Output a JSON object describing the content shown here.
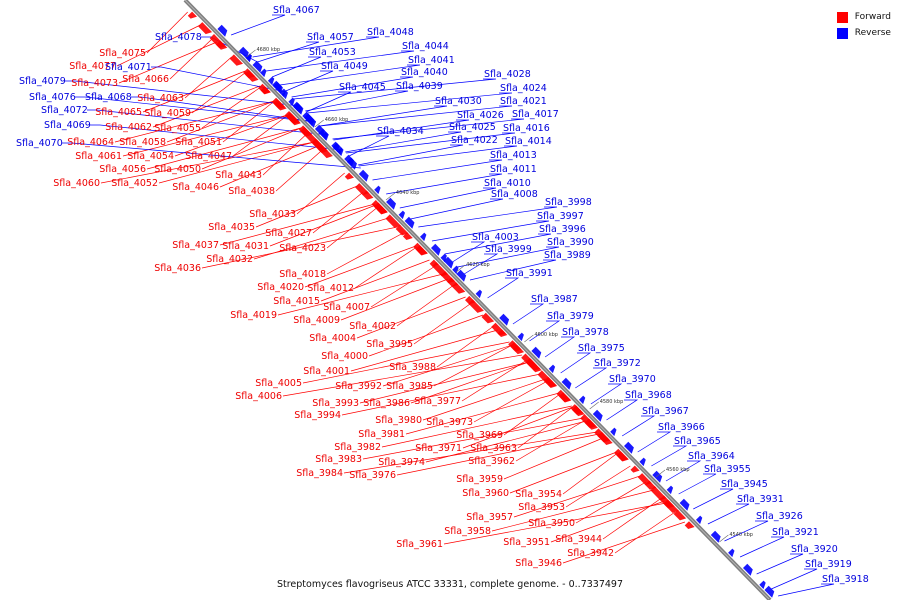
{
  "legend": {
    "forward_label": "Forward",
    "reverse_label": "Reverse",
    "forward_color": "#ff0000",
    "reverse_color": "#0000ff"
  },
  "caption": "Streptomyces flavogriseus ATCC 33331, complete genome. - 0..7337497",
  "scale_ticks": [
    "4680 kbp",
    "4660 kbp",
    "4640 kbp",
    "4620 kbp",
    "4600 kbp",
    "4580 kbp",
    "4560 kbp",
    "4540 kbp"
  ],
  "forward_genes": [
    "Sfla_4075",
    "Sfla_4077",
    "Sfla_4073",
    "Sfla_4066",
    "Sfla_4063",
    "Sfla_4065",
    "Sfla_4059",
    "Sfla_4062",
    "Sfla_4055",
    "Sfla_4064",
    "Sfla_4058",
    "Sfla_4051",
    "Sfla_4061",
    "Sfla_4054",
    "Sfla_4047",
    "Sfla_4056",
    "Sfla_4050",
    "Sfla_4060",
    "Sfla_4052",
    "Sfla_4046",
    "Sfla_4043",
    "Sfla_4038",
    "Sfla_4033",
    "Sfla_4035",
    "Sfla_4027",
    "Sfla_4037",
    "Sfla_4031",
    "Sfla_4023",
    "Sfla_4032",
    "Sfla_4036",
    "Sfla_4018",
    "Sfla_4020",
    "Sfla_4012",
    "Sfla_4015",
    "Sfla_4019",
    "Sfla_4009",
    "Sfla_4007",
    "Sfla_4002",
    "Sfla_4004",
    "Sfla_3995",
    "Sfla_4000",
    "Sfla_4001",
    "Sfla_3988",
    "Sfla_4005",
    "Sfla_3992",
    "Sfla_3985",
    "Sfla_4006",
    "Sfla_3993",
    "Sfla_3986",
    "Sfla_3977",
    "Sfla_3994",
    "Sfla_3980",
    "Sfla_3973",
    "Sfla_3981",
    "Sfla_3969",
    "Sfla_3982",
    "Sfla_3971",
    "Sfla_3963",
    "Sfla_3983",
    "Sfla_3974",
    "Sfla_3962",
    "Sfla_3984",
    "Sfla_3976",
    "Sfla_3959",
    "Sfla_3960",
    "Sfla_3954",
    "Sfla_3953",
    "Sfla_3957",
    "Sfla_3950",
    "Sfla_3958",
    "Sfla_3944",
    "Sfla_3951",
    "Sfla_3961",
    "Sfla_3942",
    "Sfla_3946"
  ],
  "reverse_genes": [
    "Sfla_4078",
    "Sfla_4067",
    "Sfla_4057",
    "Sfla_4048",
    "Sfla_4053",
    "Sfla_4044",
    "Sfla_4041",
    "Sfla_4049",
    "Sfla_4040",
    "Sfla_4071",
    "Sfla_4079",
    "Sfla_4045",
    "Sfla_4039",
    "Sfla_4076",
    "Sfla_4068",
    "Sfla_4072",
    "Sfla_4069",
    "Sfla_4070",
    "Sfla_4028",
    "Sfla_4024",
    "Sfla_4030",
    "Sfla_4021",
    "Sfla_4026",
    "Sfla_4017",
    "Sfla_4025",
    "Sfla_4016",
    "Sfla_4034",
    "Sfla_4022",
    "Sfla_4014",
    "Sfla_4013",
    "Sfla_4011",
    "Sfla_4010",
    "Sfla_4008",
    "Sfla_3998",
    "Sfla_3997",
    "Sfla_3996",
    "Sfla_4003",
    "Sfla_3990",
    "Sfla_3999",
    "Sfla_3989",
    "Sfla_3991",
    "Sfla_3987",
    "Sfla_3979",
    "Sfla_3978",
    "Sfla_3975",
    "Sfla_3972",
    "Sfla_3970",
    "Sfla_3968",
    "Sfla_3967",
    "Sfla_3966",
    "Sfla_3965",
    "Sfla_3964",
    "Sfla_3955",
    "Sfla_3945",
    "Sfla_3931",
    "Sfla_3926",
    "Sfla_3921",
    "Sfla_3920",
    "Sfla_3919",
    "Sfla_3918"
  ]
}
